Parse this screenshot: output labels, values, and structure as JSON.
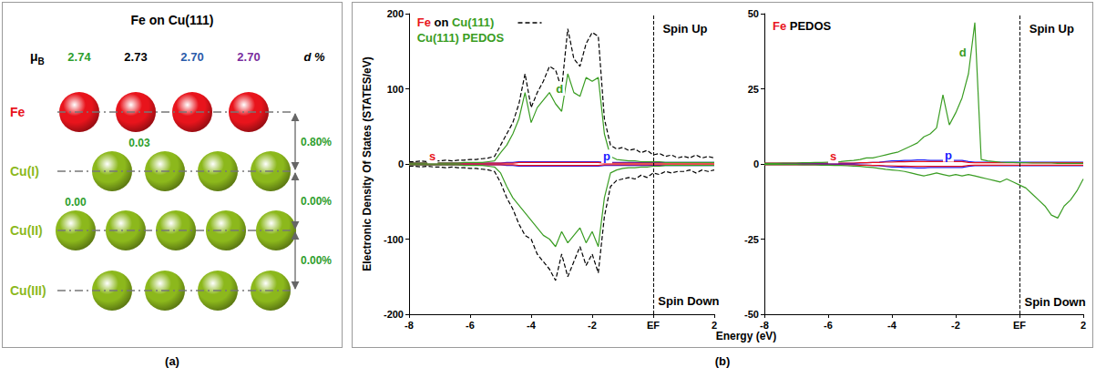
{
  "panel_a": {
    "title": "Fe on Cu(111)",
    "moment_symbol": {
      "text": "μ",
      "sub": "B"
    },
    "moments": [
      {
        "text": "2.74",
        "color": "#2e9e2e"
      },
      {
        "text": "2.73",
        "color": "#000000"
      },
      {
        "text": "2.70",
        "color": "#2a5caa"
      },
      {
        "text": "2.70",
        "color": "#7a2e9e"
      }
    ],
    "spacing_header": "d %",
    "layers": [
      {
        "label": "Fe",
        "color": "#e8141c",
        "atoms": 4
      },
      {
        "label": "Cu(I)",
        "color": "#8cb81c",
        "atoms": 4,
        "moment_change": "0.03"
      },
      {
        "label": "Cu(II)",
        "color": "#8cb81c",
        "atoms": 5,
        "moment_change": "0.00"
      },
      {
        "label": "Cu(III)",
        "color": "#8cb81c",
        "atoms": 4
      }
    ],
    "spacings": [
      "0.80%",
      "0.00%",
      "0.00%"
    ],
    "note_color": "#2e9e2e"
  },
  "panel_labels": [
    "(a)",
    "(b)"
  ],
  "y_label": "Electronic Density Of States (STATES/eV)",
  "x_label": "Energy (eV)",
  "chart_data": [
    {
      "type": "line",
      "x": [
        -8,
        -7.8,
        -7.6,
        -7.4,
        -7.2,
        -7,
        -6.8,
        -6.6,
        -6.4,
        -6.2,
        -6,
        -5.8,
        -5.6,
        -5.4,
        -5.2,
        -5,
        -4.8,
        -4.6,
        -4.4,
        -4.2,
        -4,
        -3.8,
        -3.6,
        -3.4,
        -3.2,
        -3,
        -2.8,
        -2.6,
        -2.4,
        -2.2,
        -2,
        -1.8,
        -1.6,
        -1.4,
        -1.2,
        -1,
        -0.8,
        -0.6,
        -0.4,
        -0.2,
        0,
        0.2,
        0.4,
        0.6,
        0.8,
        1,
        1.2,
        1.4,
        1.6,
        1.8,
        2
      ],
      "xlim": [
        -8,
        2
      ],
      "xticks": [
        -8,
        -6,
        -4,
        -2,
        {
          "value": 0,
          "label": "EF"
        },
        2
      ],
      "ylim": [
        -200,
        200
      ],
      "yticks": [
        -200,
        -100,
        0,
        100,
        200
      ],
      "grid": false,
      "vlines": [
        0
      ],
      "series": [
        {
          "name": "Fe on Cu(111)",
          "color": "#000000",
          "line_style": "dashed",
          "values": [
            3,
            3,
            4,
            3,
            4,
            4,
            5,
            4,
            5,
            5,
            6,
            6,
            7,
            8,
            10,
            25,
            40,
            55,
            80,
            120,
            75,
            95,
            110,
            130,
            125,
            100,
            180,
            140,
            130,
            160,
            175,
            170,
            60,
            25,
            20,
            22,
            18,
            20,
            15,
            18,
            12,
            14,
            10,
            12,
            8,
            10,
            8,
            12,
            8,
            10,
            8
          ],
          "values_down": [
            -3,
            -3,
            -4,
            -3,
            -4,
            -4,
            -5,
            -4,
            -5,
            -5,
            -6,
            -6,
            -7,
            -8,
            -10,
            -25,
            -45,
            -60,
            -80,
            -95,
            -100,
            -120,
            -130,
            -140,
            -155,
            -120,
            -150,
            -130,
            -110,
            -135,
            -120,
            -145,
            -70,
            -30,
            -22,
            -20,
            -18,
            -20,
            -15,
            -18,
            -12,
            -14,
            -10,
            -12,
            -10,
            -10,
            -8,
            -12,
            -8,
            -10,
            -8
          ]
        },
        {
          "name": "d",
          "color": "#3a9d23",
          "line_style": "solid",
          "values": [
            1,
            1,
            1,
            1,
            1,
            1,
            1,
            1,
            1,
            2,
            2,
            2,
            2,
            3,
            4,
            15,
            25,
            40,
            60,
            95,
            55,
            75,
            85,
            95,
            80,
            70,
            120,
            95,
            90,
            115,
            110,
            115,
            40,
            10,
            6,
            5,
            4,
            4,
            3,
            3,
            3,
            3,
            2,
            2,
            2,
            2,
            2,
            2,
            2,
            2,
            2
          ],
          "values_down": [
            -1,
            -1,
            -1,
            -1,
            -1,
            -1,
            -1,
            -1,
            -1,
            -2,
            -2,
            -2,
            -2,
            -3,
            -4,
            -12,
            -30,
            -45,
            -55,
            -65,
            -75,
            -85,
            -95,
            -100,
            -110,
            -90,
            -105,
            -95,
            -85,
            -105,
            -90,
            -110,
            -45,
            -12,
            -8,
            -6,
            -5,
            -5,
            -4,
            -4,
            -3,
            -3,
            -2,
            -2,
            -2,
            -2,
            -2,
            -2,
            -2,
            -2,
            -2
          ]
        },
        {
          "name": "s",
          "color": "#e8141c",
          "line_style": "solid",
          "values": [
            1,
            1,
            1,
            1,
            1,
            1,
            1,
            1,
            1,
            1,
            1,
            1,
            1,
            1,
            1,
            1,
            1,
            1,
            2,
            2,
            2,
            2,
            2,
            2,
            2,
            2,
            2,
            2,
            2,
            2,
            2,
            2,
            1,
            1,
            1,
            1,
            1,
            1,
            1,
            1,
            1,
            1,
            1,
            1,
            1,
            1,
            1,
            1,
            1,
            1,
            1
          ],
          "values_down": [
            -1,
            -1,
            -1,
            -1,
            -1,
            -1,
            -1,
            -1,
            -1,
            -1,
            -1,
            -1,
            -1,
            -1,
            -1,
            -1,
            -1,
            -1,
            -2,
            -2,
            -2,
            -2,
            -2,
            -2,
            -2,
            -2,
            -2,
            -2,
            -2,
            -2,
            -2,
            -2,
            -1,
            -1,
            -1,
            -1,
            -1,
            -1,
            -1,
            -1,
            -1,
            -1,
            -1,
            -1,
            -1,
            -1,
            -1,
            -1,
            -1,
            -1,
            -1
          ]
        },
        {
          "name": "p",
          "color": "#1a1aff",
          "line_style": "solid",
          "values": [
            1,
            1,
            1,
            1,
            1,
            1,
            1,
            1,
            1,
            1,
            1,
            1,
            1,
            1,
            1,
            1,
            2,
            2,
            3,
            3,
            3,
            3,
            3,
            3,
            3,
            3,
            3,
            3,
            3,
            3,
            3,
            3,
            2,
            2,
            2,
            2,
            2,
            2,
            2,
            2,
            2,
            2,
            2,
            2,
            2,
            2,
            2,
            2,
            2,
            2,
            2
          ],
          "values_down": [
            -1,
            -1,
            -1,
            -1,
            -1,
            -1,
            -1,
            -1,
            -1,
            -1,
            -1,
            -1,
            -1,
            -1,
            -1,
            -1,
            -2,
            -2,
            -3,
            -3,
            -3,
            -3,
            -3,
            -3,
            -3,
            -3,
            -3,
            -3,
            -3,
            -3,
            -3,
            -3,
            -2,
            -2,
            -2,
            -2,
            -2,
            -2,
            -2,
            -2,
            -2,
            -2,
            -2,
            -2,
            -2,
            -2,
            -2,
            -2,
            -2,
            -2,
            -2
          ]
        }
      ],
      "annotations": [
        {
          "parts": [
            {
              "text": "Fe",
              "color": "#e8141c"
            },
            {
              "text": "on",
              "color": "#000000"
            },
            {
              "text": "Cu(111)",
              "color": "#3a9d23"
            }
          ],
          "x": -7.8,
          "y": 188,
          "line_style": "dashed"
        },
        {
          "parts": [
            {
              "text": "Cu(111) PEDOS",
              "color": "#3a9d23"
            }
          ],
          "x": -7.8,
          "y": 168
        },
        {
          "parts": [
            {
              "text": "s",
              "color": "#e8141c"
            }
          ],
          "x": -7.4,
          "y": 10
        },
        {
          "parts": [
            {
              "text": "d",
              "color": "#3a9d23"
            }
          ],
          "x": -3.25,
          "y": 100
        },
        {
          "parts": [
            {
              "text": "p",
              "color": "#1a1aff"
            }
          ],
          "x": -1.7,
          "y": 10
        },
        {
          "parts": [
            {
              "text": "Spin Up",
              "color": "#000000"
            }
          ],
          "x": 0.25,
          "y": 180
        },
        {
          "parts": [
            {
              "text": "Spin Down",
              "color": "#000000"
            }
          ],
          "x": 0.1,
          "y": -182
        }
      ]
    },
    {
      "type": "line",
      "x": [
        -8,
        -7.8,
        -7.6,
        -7.4,
        -7.2,
        -7,
        -6.8,
        -6.6,
        -6.4,
        -6.2,
        -6,
        -5.8,
        -5.6,
        -5.4,
        -5.2,
        -5,
        -4.8,
        -4.6,
        -4.4,
        -4.2,
        -4,
        -3.8,
        -3.6,
        -3.4,
        -3.2,
        -3,
        -2.8,
        -2.6,
        -2.4,
        -2.2,
        -2,
        -1.8,
        -1.6,
        -1.4,
        -1.2,
        -1,
        -0.8,
        -0.6,
        -0.4,
        -0.2,
        0,
        0.2,
        0.4,
        0.6,
        0.8,
        1,
        1.2,
        1.4,
        1.6,
        1.8,
        2
      ],
      "xlim": [
        -8,
        2
      ],
      "xticks": [
        -8,
        -6,
        -4,
        -2,
        {
          "value": 0,
          "label": "EF"
        },
        2
      ],
      "ylim": [
        -50,
        50
      ],
      "yticks": [
        -50,
        -25,
        0,
        25,
        50
      ],
      "grid": false,
      "vlines": [
        0
      ],
      "series": [
        {
          "name": "d",
          "color": "#3a9d23",
          "line_style": "solid",
          "values": [
            0.2,
            0.2,
            0.2,
            0.3,
            0.3,
            0.3,
            0.4,
            0.4,
            0.5,
            0.5,
            0.6,
            0.7,
            0.8,
            1,
            1.2,
            1.5,
            2,
            2,
            2.5,
            3,
            3.5,
            4,
            5,
            6,
            7,
            9,
            10,
            12,
            23,
            13,
            17,
            22,
            30,
            47,
            1.5,
            1,
            0.8,
            0.6,
            0.5,
            0.5,
            0.4,
            0.4,
            0.3,
            0.3,
            0.3,
            0.3,
            0.2,
            0.2,
            0.2,
            0.2,
            0.2
          ],
          "values_down": [
            -0.2,
            -0.2,
            -0.2,
            -0.2,
            -0.2,
            -0.2,
            -0.3,
            -0.3,
            -0.3,
            -0.4,
            -0.4,
            -0.5,
            -0.5,
            -0.6,
            -0.7,
            -0.8,
            -1,
            -1.2,
            -1.5,
            -1.8,
            -2,
            -2.2,
            -2.5,
            -3,
            -3.5,
            -4,
            -3.5,
            -3,
            -3.5,
            -4,
            -3.5,
            -4,
            -3.5,
            -4,
            -4.5,
            -5,
            -5.5,
            -6,
            -5,
            -6,
            -7,
            -8,
            -10,
            -12,
            -14,
            -17,
            -18,
            -14,
            -12,
            -9,
            -5
          ]
        },
        {
          "name": "s",
          "color": "#e8141c",
          "line_style": "solid",
          "values": [
            0.3,
            0.3,
            0.3,
            0.3,
            0.3,
            0.3,
            0.3,
            0.3,
            0.3,
            0.3,
            0.3,
            0.3,
            0.3,
            0.3,
            0.3,
            0.4,
            0.4,
            0.5,
            0.5,
            0.6,
            0.6,
            0.7,
            0.7,
            0.8,
            0.8,
            0.8,
            0.8,
            0.8,
            0.8,
            0.8,
            0.8,
            0.8,
            0.5,
            0.4,
            0.4,
            0.4,
            0.4,
            0.4,
            0.4,
            0.4,
            0.4,
            0.4,
            0.4,
            0.4,
            0.4,
            0.4,
            0.4,
            0.4,
            0.4,
            0.4,
            0.4
          ],
          "values_down": [
            -0.3,
            -0.3,
            -0.3,
            -0.3,
            -0.3,
            -0.3,
            -0.3,
            -0.3,
            -0.3,
            -0.3,
            -0.3,
            -0.3,
            -0.3,
            -0.3,
            -0.3,
            -0.4,
            -0.4,
            -0.5,
            -0.5,
            -0.6,
            -0.6,
            -0.7,
            -0.7,
            -0.8,
            -0.8,
            -0.8,
            -0.8,
            -0.8,
            -0.8,
            -0.8,
            -0.8,
            -0.8,
            -0.5,
            -0.4,
            -0.4,
            -0.4,
            -0.4,
            -0.4,
            -0.4,
            -0.4,
            -0.4,
            -0.4,
            -0.4,
            -0.4,
            -0.4,
            -0.4,
            -0.4,
            -0.4,
            -0.4,
            -0.4,
            -0.4
          ]
        },
        {
          "name": "p",
          "color": "#1a1aff",
          "line_style": "solid",
          "values": [
            0.2,
            0.2,
            0.2,
            0.2,
            0.2,
            0.2,
            0.2,
            0.2,
            0.2,
            0.2,
            0.2,
            0.2,
            0.2,
            0.2,
            0.2,
            0.3,
            0.4,
            0.5,
            0.6,
            0.8,
            1,
            1,
            1.2,
            1.2,
            1.3,
            1.3,
            1.2,
            1.2,
            1.2,
            1.2,
            1.2,
            1.2,
            0.8,
            0.6,
            0.6,
            0.6,
            0.6,
            0.6,
            0.6,
            0.6,
            0.6,
            0.6,
            0.6,
            0.6,
            0.6,
            0.6,
            0.6,
            0.6,
            0.6,
            0.6,
            0.6
          ],
          "values_down": [
            -0.2,
            -0.2,
            -0.2,
            -0.2,
            -0.2,
            -0.2,
            -0.2,
            -0.2,
            -0.2,
            -0.2,
            -0.2,
            -0.2,
            -0.2,
            -0.2,
            -0.2,
            -0.3,
            -0.4,
            -0.5,
            -0.6,
            -0.8,
            -1,
            -1,
            -1.2,
            -1.2,
            -1.3,
            -1.3,
            -1.2,
            -1.2,
            -1.2,
            -1.2,
            -1.2,
            -1.2,
            -0.8,
            -0.6,
            -0.6,
            -0.6,
            -0.6,
            -0.6,
            -0.6,
            -0.6,
            -0.6,
            -0.6,
            -0.6,
            -0.6,
            -0.6,
            -0.6,
            -0.6,
            -0.6,
            -0.6,
            -0.6,
            -0.6
          ]
        }
      ],
      "annotations": [
        {
          "parts": [
            {
              "text": "Fe",
              "color": "#e8141c"
            },
            {
              "text": "PEDOS",
              "color": "#000000"
            }
          ],
          "x": -7.8,
          "y": 46
        },
        {
          "parts": [
            {
              "text": "d",
              "color": "#3a9d23"
            }
          ],
          "x": -1.95,
          "y": 37
        },
        {
          "parts": [
            {
              "text": "s",
              "color": "#e8141c"
            }
          ],
          "x": -6,
          "y": 2.5
        },
        {
          "parts": [
            {
              "text": "p",
              "color": "#1a1aff"
            }
          ],
          "x": -2.4,
          "y": 3
        },
        {
          "parts": [
            {
              "text": "Spin Up",
              "color": "#000000"
            }
          ],
          "x": 0.25,
          "y": 45
        },
        {
          "parts": [
            {
              "text": "Spin Down",
              "color": "#000000"
            }
          ],
          "x": 0.1,
          "y": -46
        }
      ]
    }
  ]
}
